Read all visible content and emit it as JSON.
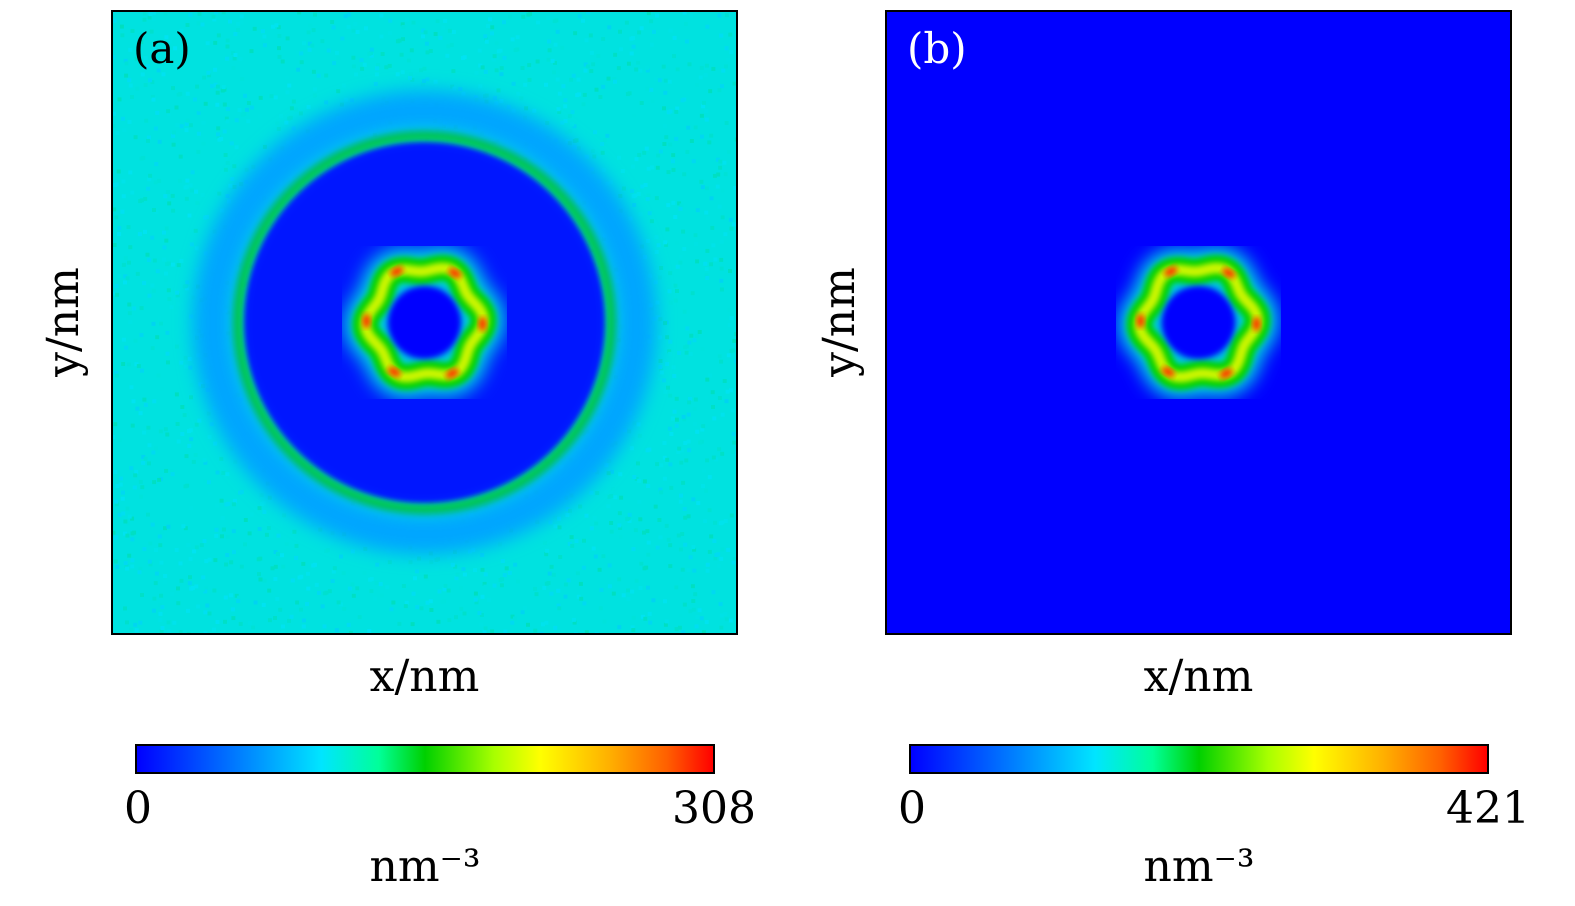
{
  "chart_data": [
    {
      "type": "heatmap",
      "panel_label": "(a)",
      "xlabel": "x/nm",
      "ylabel": "y/nm",
      "colorbar": {
        "min": "0",
        "max": "308",
        "unit": "nm⁻³"
      },
      "colormap": [
        "#0000ff",
        "#00e5ff",
        "#00d000",
        "#ffff00",
        "#ff0000"
      ],
      "background_value": 0.28,
      "features": [
        {
          "kind": "hexagonal-ring",
          "center_value": 0.0,
          "ring_value": 0.7,
          "peaks": 6,
          "peak_value": 0.95
        },
        {
          "kind": "circular-shell",
          "value": 0.48
        },
        {
          "kind": "depletion-shell",
          "value": 0.18
        }
      ]
    },
    {
      "type": "heatmap",
      "panel_label": "(b)",
      "xlabel": "x/nm",
      "ylabel": "y/nm",
      "colorbar": {
        "min": "0",
        "max": "421",
        "unit": "nm⁻³"
      },
      "colormap": [
        "#0000ff",
        "#00e5ff",
        "#00d000",
        "#ffff00",
        "#ff0000"
      ],
      "background_value": 0.0,
      "features": [
        {
          "kind": "hexagonal-ring",
          "center_value": 0.0,
          "ring_value": 0.7,
          "peaks": 6,
          "peak_value": 0.95
        }
      ]
    }
  ]
}
